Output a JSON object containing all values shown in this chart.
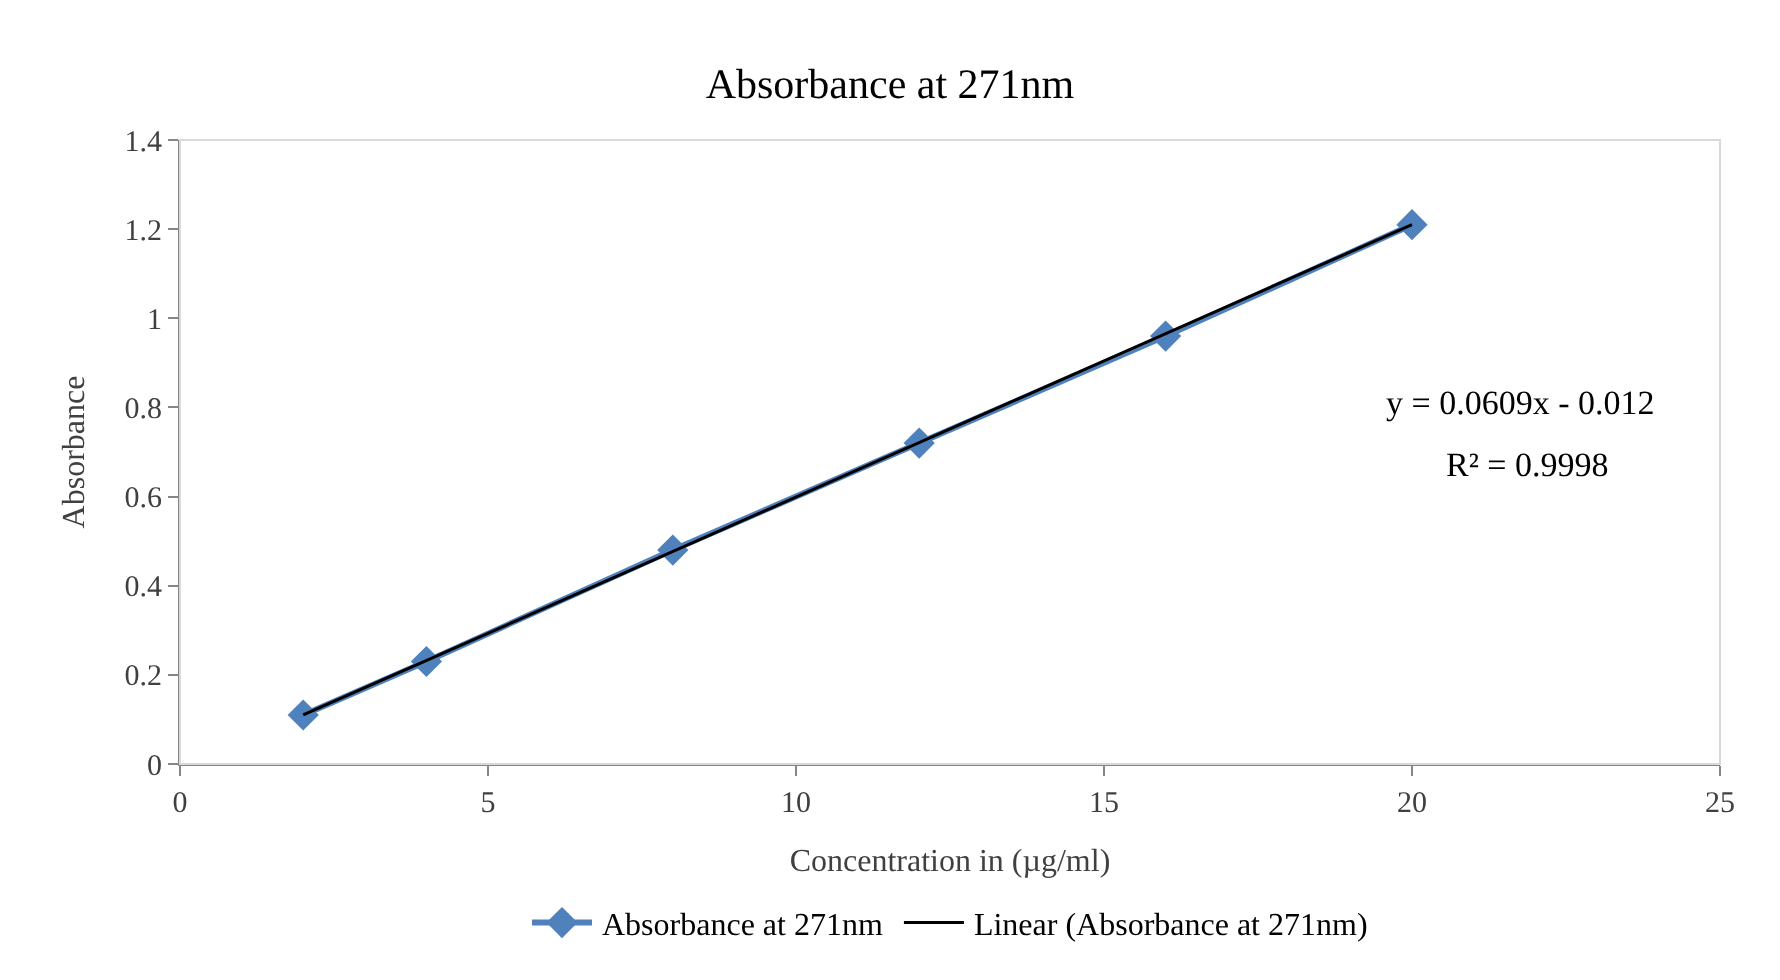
{
  "chart_data": {
    "type": "line",
    "title": "Absorbance at 271nm",
    "xlabel": "Concentration in (µg/ml)",
    "ylabel": "Absorbance",
    "x": [
      2,
      4,
      8,
      12,
      16,
      20
    ],
    "series": [
      {
        "name": "Absorbance at 271nm",
        "color": "#4f81bd",
        "values": [
          0.11,
          0.23,
          0.48,
          0.72,
          0.96,
          1.21
        ],
        "marker": "diamond"
      },
      {
        "name": "Linear (Absorbance at 271nm)",
        "type": "line",
        "color": "#000000",
        "x": [
          2,
          20
        ],
        "values": [
          0.11,
          1.21
        ],
        "marker": "none"
      }
    ],
    "annotations": [
      "y = 0.0609x - 0.012",
      "R² = 0.9998"
    ],
    "xlim": [
      0,
      25
    ],
    "xticks": [
      0,
      5,
      10,
      15,
      20,
      25
    ],
    "ylim": [
      0,
      1.4
    ],
    "yticks": [
      0,
      0.2,
      0.4,
      0.6,
      0.8,
      1,
      1.2,
      1.4
    ],
    "legend": "bottom",
    "line_style": "solid"
  }
}
